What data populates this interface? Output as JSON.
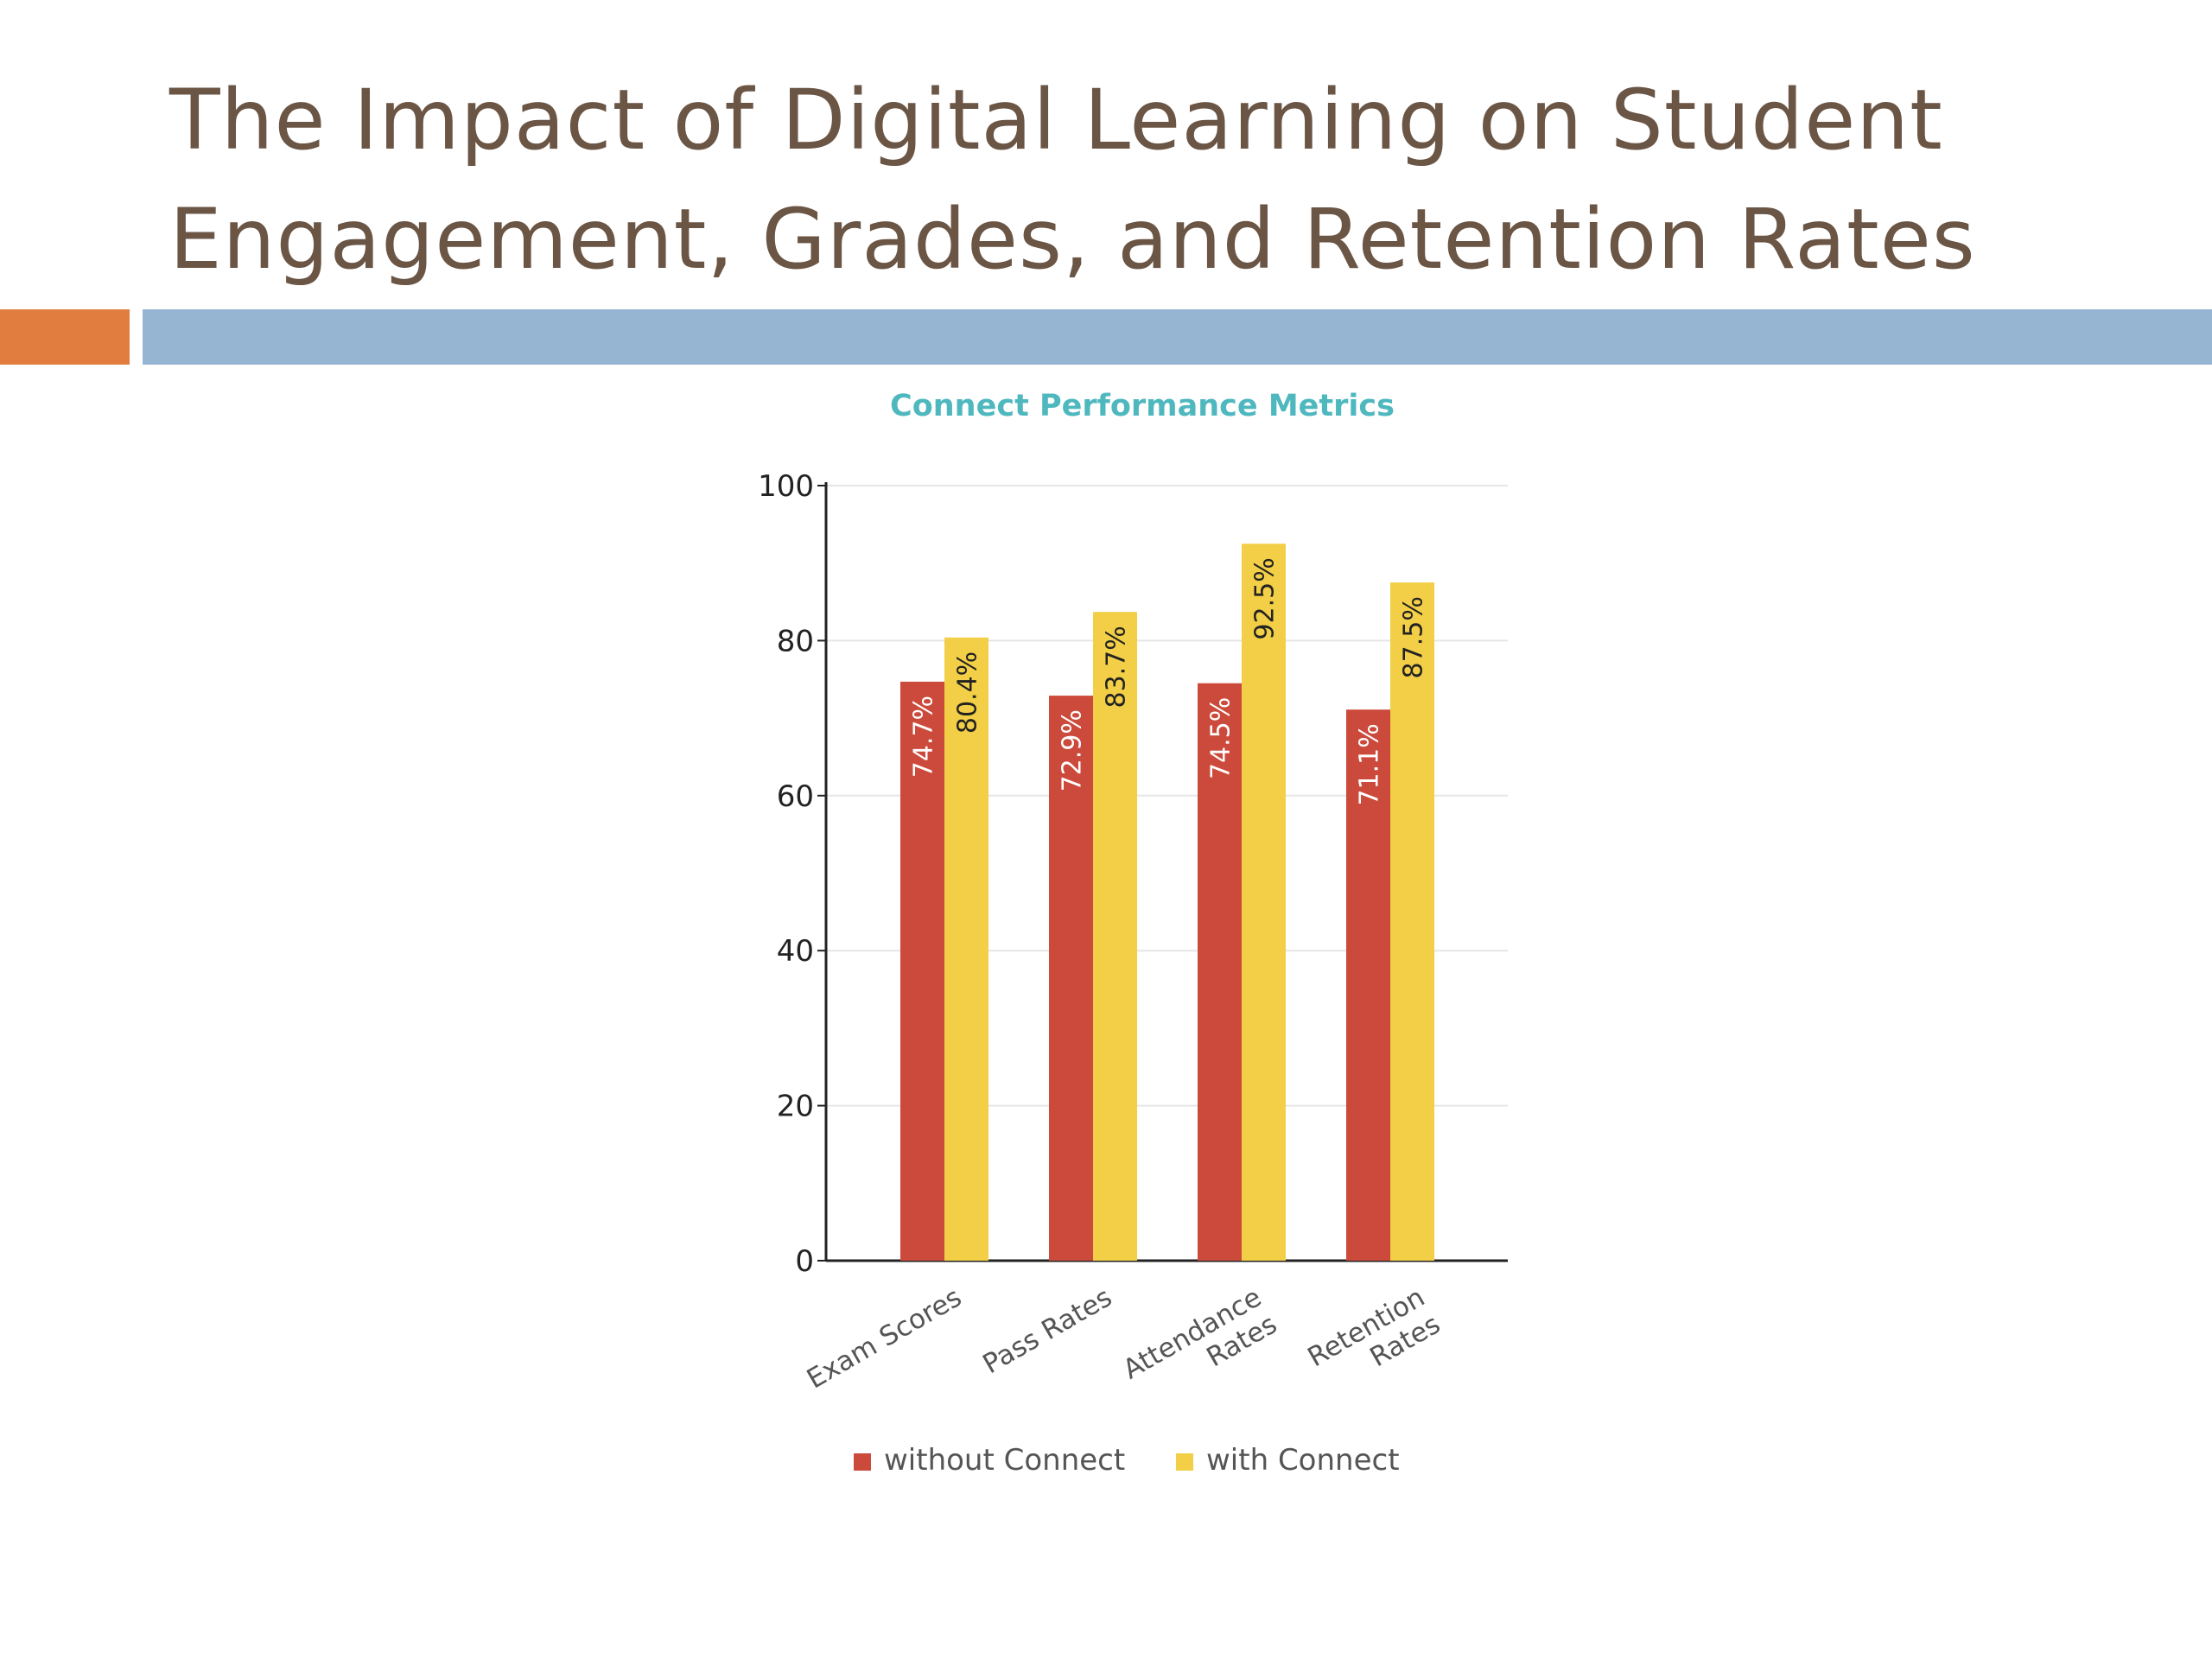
{
  "slide": {
    "title_line1": "The Impact of Digital Learning on Student",
    "title_line2": "Engagement, Grades, and Retention Rates"
  },
  "colors": {
    "title": "#6b5545",
    "accent_orange": "#e07d3f",
    "rule_blue": "#95b5d3",
    "chart_title": "#4fb8bf"
  },
  "chart_data": {
    "type": "bar",
    "title": "Connect Performance Metrics",
    "xlabel": "",
    "ylabel": "",
    "ylim": [
      0,
      100
    ],
    "yticks": [
      0,
      20,
      40,
      60,
      80,
      100
    ],
    "grid": true,
    "legend_position": "bottom",
    "categories": [
      [
        "Exam Scores"
      ],
      [
        "Pass Rates"
      ],
      [
        "Attendance",
        "Rates"
      ],
      [
        "Retention",
        "Rates"
      ]
    ],
    "series": [
      {
        "name": "without Connect",
        "color": "#cc4a3b",
        "values": [
          74.7,
          72.9,
          74.5,
          71.1
        ],
        "labels": [
          "74.7%",
          "72.9%",
          "74.5%",
          "71.1%"
        ],
        "label_color": "#ffffff"
      },
      {
        "name": "with Connect",
        "color": "#f2cf46",
        "values": [
          80.4,
          83.7,
          92.5,
          87.5
        ],
        "labels": [
          "80.4%",
          "83.7%",
          "92.5%",
          "87.5%"
        ],
        "label_color": "#222222"
      }
    ]
  }
}
